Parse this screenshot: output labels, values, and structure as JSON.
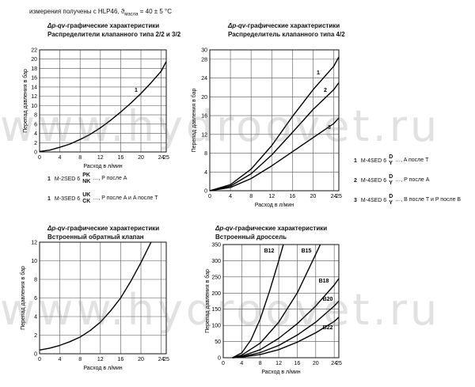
{
  "note": {
    "prefix": "измерения получены с HLP46, ϑ",
    "subscript": "масла",
    "suffix": " = 40 ± 5 °C"
  },
  "panels": [
    {
      "title_line1": "-графические характеристики",
      "title_line2": "Распределители клапанного типа 2/2 и 3/2"
    },
    {
      "title_line1": "-графические характеристики",
      "title_line2": "Распределитель клапанного типа 4/2"
    },
    {
      "title_line1": "-графические характеристики",
      "title_line2": "Встроенный обратный клапан"
    },
    {
      "title_line1": "-графические характеристики",
      "title_line2": "Встроенный дроссель"
    }
  ],
  "title_symbol": "Δp-qv",
  "legends": {
    "tl": [
      {
        "num": "1",
        "model": "M-2SED 6",
        "codes": [
          "PK",
          "NK"
        ],
        "desc": "…, P после A"
      },
      {
        "num": "1",
        "model": "M-3SED 6",
        "codes": [
          "UK",
          "CK"
        ],
        "desc": "…, P после A и A после T"
      }
    ],
    "tr": [
      {
        "num": "1",
        "model": "M-4SED 6",
        "codes": [
          "D",
          "Y"
        ],
        "desc": "…, A после T"
      },
      {
        "num": "2",
        "model": "M-4SED 6",
        "codes": [
          "D",
          "Y"
        ],
        "desc": "…, P после A"
      },
      {
        "num": "3",
        "model": "M-4SED 6",
        "codes": [
          "D",
          "Y"
        ],
        "desc": "…, B после T и P после B"
      }
    ]
  },
  "watermark": "www.hydroovet.ru",
  "chart_data": [
    {
      "type": "line",
      "title": "Распределители клапанного типа 2/2 и 3/2",
      "xlabel": "Расход в л/мин",
      "ylabel": "Перепад давления в бар",
      "xlim": [
        0,
        25
      ],
      "ylim": [
        0,
        22
      ],
      "xticks": [
        "0",
        "4",
        "8",
        "12",
        "16",
        "20",
        "24",
        "25"
      ],
      "yticks": [
        "0",
        "2",
        "4",
        "6",
        "8",
        "10",
        "12",
        "14",
        "16",
        "18",
        "20",
        "22"
      ],
      "grid": true,
      "series": [
        {
          "name": "1",
          "x": [
            0,
            2,
            4,
            6,
            8,
            10,
            12,
            14,
            16,
            18,
            20,
            22,
            24,
            25
          ],
          "y": [
            0.1,
            0.4,
            1.0,
            1.7,
            2.7,
            3.8,
            5.2,
            6.8,
            8.6,
            10.5,
            12.6,
            14.9,
            17.4,
            19.5
          ]
        }
      ]
    },
    {
      "type": "line",
      "title": "Распределитель клапанного типа 4/2",
      "xlabel": "Расход в л/мин",
      "ylabel": "Перепад давления в бар",
      "xlim": [
        0,
        25
      ],
      "ylim": [
        0,
        30
      ],
      "xticks": [
        "0",
        "4",
        "8",
        "12",
        "16",
        "20",
        "24",
        "25"
      ],
      "yticks": [
        "0",
        "4",
        "8",
        "12",
        "16",
        "20",
        "24",
        "28",
        "30"
      ],
      "grid": true,
      "series": [
        {
          "name": "1",
          "x": [
            0,
            4,
            8,
            12,
            16,
            20,
            24,
            25
          ],
          "y": [
            0,
            1.3,
            4.6,
            9.6,
            15.8,
            21.5,
            26.5,
            28.5
          ]
        },
        {
          "name": "2",
          "x": [
            0,
            4,
            8,
            12,
            16,
            20,
            24,
            25
          ],
          "y": [
            0,
            1.0,
            3.6,
            7.6,
            12.4,
            17.3,
            21.5,
            23.0
          ]
        },
        {
          "name": "3",
          "x": [
            0,
            4,
            8,
            12,
            16,
            20,
            24,
            25
          ],
          "y": [
            0,
            0.7,
            2.6,
            5.3,
            8.3,
            11.3,
            14.3,
            15.5
          ]
        }
      ]
    },
    {
      "type": "line",
      "title": "Встроенный обратный клапан",
      "xlabel": "Расход в л/мин",
      "ylabel": "Перепад давления в бар",
      "xlim": [
        0,
        25
      ],
      "ylim": [
        0,
        12
      ],
      "xticks": [
        "0",
        "4",
        "8",
        "12",
        "16",
        "20",
        "24",
        "25"
      ],
      "yticks": [
        "0",
        "2",
        "4",
        "6",
        "8",
        "10",
        "12"
      ],
      "grid": true,
      "series": [
        {
          "name": "",
          "x": [
            0,
            2,
            4,
            6,
            8,
            10,
            12,
            14,
            16,
            18,
            20,
            22
          ],
          "y": [
            0.4,
            0.6,
            0.9,
            1.3,
            1.8,
            2.5,
            3.4,
            4.6,
            6.0,
            7.8,
            9.8,
            12.0
          ]
        }
      ]
    },
    {
      "type": "line",
      "title": "Встроенный дроссель",
      "xlabel": "Расход в л/мин",
      "ylabel": "Перепад давления в бар",
      "xlim": [
        0,
        25
      ],
      "ylim": [
        0,
        350
      ],
      "xticks": [
        "0",
        "4",
        "8",
        "12",
        "16",
        "20",
        "24",
        "25"
      ],
      "yticks": [
        "0",
        "50",
        "100",
        "150",
        "200",
        "250",
        "300",
        "350"
      ],
      "grid": true,
      "series": [
        {
          "name": "B12",
          "x": [
            2,
            4,
            6,
            8,
            10,
            12,
            13
          ],
          "y": [
            0,
            15,
            55,
            120,
            205,
            300,
            350
          ]
        },
        {
          "name": "B15",
          "x": [
            2,
            4,
            8,
            12,
            16,
            20,
            21
          ],
          "y": [
            0,
            8,
            45,
            110,
            200,
            320,
            350
          ]
        },
        {
          "name": "B18",
          "x": [
            2,
            4,
            8,
            12,
            16,
            20,
            24,
            25
          ],
          "y": [
            0,
            5,
            25,
            60,
            105,
            160,
            225,
            245
          ]
        },
        {
          "name": "B20",
          "x": [
            2,
            4,
            8,
            12,
            16,
            20,
            24,
            25
          ],
          "y": [
            0,
            3,
            16,
            38,
            70,
            110,
            160,
            175
          ]
        },
        {
          "name": "B22",
          "x": [
            2,
            4,
            8,
            12,
            16,
            20,
            24,
            25
          ],
          "y": [
            0,
            2,
            10,
            25,
            48,
            77,
            112,
            125
          ]
        }
      ]
    }
  ]
}
